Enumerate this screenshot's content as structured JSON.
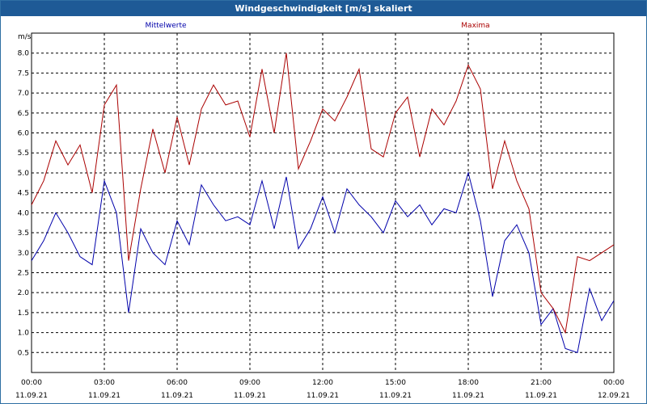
{
  "window": {
    "title": "Windgeschwindigkeit [m/s] skaliert"
  },
  "chart_data": {
    "type": "line",
    "title": "Windgeschwindigkeit [m/s] skaliert",
    "ylabel": "m/s",
    "xlabel": "",
    "ylim": [
      0,
      8.5
    ],
    "yticks": [
      "0.5",
      "1.0",
      "1.5",
      "2.0",
      "2.5",
      "3.0",
      "3.5",
      "4.0",
      "4.5",
      "5.0",
      "5.5",
      "6.0",
      "6.5",
      "7.0",
      "7.5",
      "8.0"
    ],
    "xticks": [
      {
        "time": "00:00",
        "date": "11.09.21"
      },
      {
        "time": "03:00",
        "date": "11.09.21"
      },
      {
        "time": "06:00",
        "date": "11.09.21"
      },
      {
        "time": "09:00",
        "date": "11.09.21"
      },
      {
        "time": "12:00",
        "date": "11.09.21"
      },
      {
        "time": "15:00",
        "date": "11.09.21"
      },
      {
        "time": "18:00",
        "date": "11.09.21"
      },
      {
        "time": "21:00",
        "date": "11.09.21"
      },
      {
        "time": "00:00",
        "date": "12.09.21"
      }
    ],
    "x_hours": [
      0,
      0.5,
      1,
      1.5,
      2,
      2.5,
      3,
      3.5,
      4,
      4.5,
      5,
      5.5,
      6,
      6.5,
      7,
      7.5,
      8,
      8.5,
      9,
      9.5,
      10,
      10.5,
      11,
      11.5,
      12,
      12.5,
      13,
      13.5,
      14,
      14.5,
      15,
      15.5,
      16,
      16.5,
      17,
      17.5,
      18,
      18.5,
      19,
      19.5,
      20,
      20.5,
      21,
      21.5,
      22,
      22.5,
      23,
      23.5,
      24
    ],
    "grid": true,
    "colors": {
      "mittelwerte": "#0000aa",
      "maxima": "#aa0000"
    },
    "series": [
      {
        "name": "Mittelwerte",
        "values": [
          2.8,
          3.3,
          4.0,
          3.5,
          2.9,
          2.7,
          4.8,
          4.0,
          1.5,
          3.6,
          3.0,
          2.7,
          3.8,
          3.2,
          4.7,
          4.2,
          3.8,
          3.9,
          3.7,
          4.8,
          3.6,
          4.9,
          3.1,
          3.6,
          4.4,
          3.5,
          4.6,
          4.2,
          3.9,
          3.5,
          4.3,
          3.9,
          4.2,
          3.7,
          4.1,
          4.0,
          5.0,
          3.8,
          1.9,
          3.3,
          3.7,
          3.0,
          1.2,
          1.6,
          0.6,
          0.5,
          2.1,
          1.3,
          1.8
        ]
      },
      {
        "name": "Maxima",
        "values": [
          4.2,
          4.8,
          5.8,
          5.2,
          5.7,
          4.5,
          6.7,
          7.2,
          2.8,
          4.6,
          6.1,
          5.0,
          6.4,
          5.2,
          6.6,
          7.2,
          6.7,
          6.8,
          5.9,
          7.6,
          6.0,
          8.0,
          5.1,
          5.8,
          6.6,
          6.3,
          6.9,
          7.6,
          5.6,
          5.4,
          6.5,
          6.9,
          5.4,
          6.6,
          6.2,
          6.8,
          7.7,
          7.1,
          4.6,
          5.8,
          4.8,
          4.1,
          2.0,
          1.6,
          1.0,
          2.9,
          2.8,
          3.0,
          3.2
        ]
      }
    ]
  }
}
